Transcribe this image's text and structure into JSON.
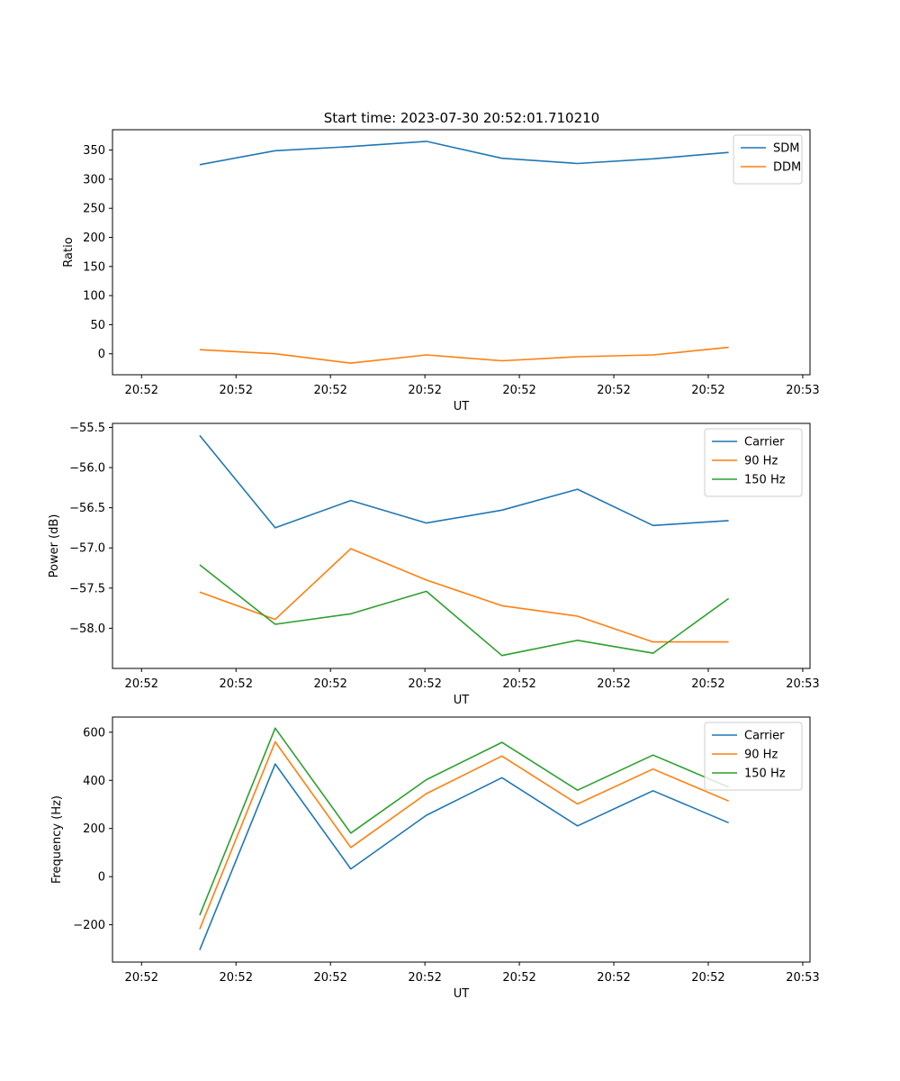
{
  "figure": {
    "title": "Start time: 2023-07-30 20:52:01.710210"
  },
  "colors": {
    "blue": "#1f77b4",
    "orange": "#ff7f0e",
    "green": "#2ca02c"
  },
  "chart_data": [
    {
      "type": "line",
      "xlabel": "UT",
      "ylabel": "Ratio",
      "title": "",
      "x_tick_labels": [
        "20:52",
        "20:52",
        "20:52",
        "20:52",
        "20:52",
        "20:52",
        "20:52",
        "20:53"
      ],
      "xlim": [
        -0.5,
        11.5
      ],
      "ylim": [
        -36,
        385
      ],
      "y_ticks": [
        0,
        50,
        100,
        150,
        200,
        250,
        300,
        350
      ],
      "y_tick_labels": [
        "0",
        "50",
        "100",
        "150",
        "200",
        "250",
        "300",
        "350"
      ],
      "legend_position": "top-right",
      "x": [
        1,
        2.3,
        3.6,
        4.9,
        6.2,
        7.5,
        8.8,
        10.1
      ],
      "series": [
        {
          "name": "SDM",
          "color": "#1f77b4",
          "values": [
            325,
            349,
            356,
            365,
            336,
            327,
            335,
            346
          ]
        },
        {
          "name": "DDM",
          "color": "#ff7f0e",
          "values": [
            7,
            0,
            -16,
            -2,
            -12,
            -5,
            -2,
            11
          ]
        }
      ]
    },
    {
      "type": "line",
      "xlabel": "UT",
      "ylabel": "Power (dB)",
      "title": "",
      "x_tick_labels": [
        "20:52",
        "20:52",
        "20:52",
        "20:52",
        "20:52",
        "20:52",
        "20:52",
        "20:53"
      ],
      "xlim": [
        -0.5,
        11.5
      ],
      "ylim": [
        -58.5,
        -55.45
      ],
      "y_ticks": [
        -58.0,
        -57.5,
        -57.0,
        -56.5,
        -56.0,
        -55.5
      ],
      "y_tick_labels": [
        "−58.0",
        "−57.5",
        "−57.0",
        "−56.5",
        "−56.0",
        "−55.5"
      ],
      "legend_position": "top-right",
      "x": [
        1,
        2.3,
        3.6,
        4.9,
        6.2,
        7.5,
        8.8,
        10.1
      ],
      "series": [
        {
          "name": "Carrier",
          "color": "#1f77b4",
          "values": [
            -55.6,
            -56.75,
            -56.41,
            -56.69,
            -56.53,
            -56.27,
            -56.72,
            -56.66
          ]
        },
        {
          "name": "90 Hz",
          "color": "#ff7f0e",
          "values": [
            -57.55,
            -57.89,
            -57.01,
            -57.4,
            -57.72,
            -57.85,
            -58.17,
            -58.17
          ]
        },
        {
          "name": "150 Hz",
          "color": "#2ca02c",
          "values": [
            -57.21,
            -57.95,
            -57.82,
            -57.54,
            -58.34,
            -58.15,
            -58.31,
            -57.63
          ]
        }
      ]
    },
    {
      "type": "line",
      "xlabel": "UT",
      "ylabel": "Frequency (Hz)",
      "title": "",
      "x_tick_labels": [
        "20:52",
        "20:52",
        "20:52",
        "20:52",
        "20:52",
        "20:52",
        "20:52",
        "20:53"
      ],
      "xlim": [
        -0.5,
        11.5
      ],
      "ylim": [
        -355,
        663
      ],
      "y_ticks": [
        -200,
        0,
        200,
        400,
        600
      ],
      "y_tick_labels": [
        "−200",
        "0",
        "200",
        "400",
        "600"
      ],
      "legend_position": "top-right",
      "x": [
        1,
        2.3,
        3.6,
        4.9,
        6.2,
        7.5,
        8.8,
        10.1
      ],
      "series": [
        {
          "name": "Carrier",
          "color": "#1f77b4",
          "values": [
            -305,
            468,
            32,
            255,
            411,
            211,
            357,
            224
          ]
        },
        {
          "name": "90 Hz",
          "color": "#ff7f0e",
          "values": [
            -218,
            560,
            121,
            345,
            501,
            302,
            447,
            314
          ]
        },
        {
          "name": "150 Hz",
          "color": "#2ca02c",
          "values": [
            -160,
            617,
            181,
            403,
            558,
            359,
            505,
            372
          ]
        }
      ]
    }
  ]
}
